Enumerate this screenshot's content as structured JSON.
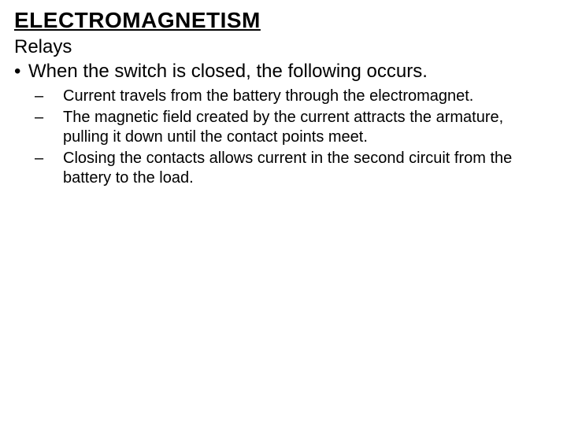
{
  "title": "ELECTROMAGNETISM",
  "subtitle": "Relays",
  "bullet1": "When the switch is closed, the following occurs.",
  "sub1": "Current travels from the battery through the electromagnet.",
  "sub2": "The magnetic field created by the current attracts the armature, pulling it down until the contact points meet.",
  "sub3": "Closing the contacts allows current in the second circuit from the battery to the load.",
  "style": {
    "background": "#ffffff",
    "text_color": "#000000",
    "font_family": "Arial",
    "title_fontsize": 28,
    "title_weight": "bold",
    "title_underline": true,
    "body_fontsize": 24,
    "sub_fontsize": 20,
    "bullet_glyph": "•",
    "dash_glyph": "–"
  }
}
